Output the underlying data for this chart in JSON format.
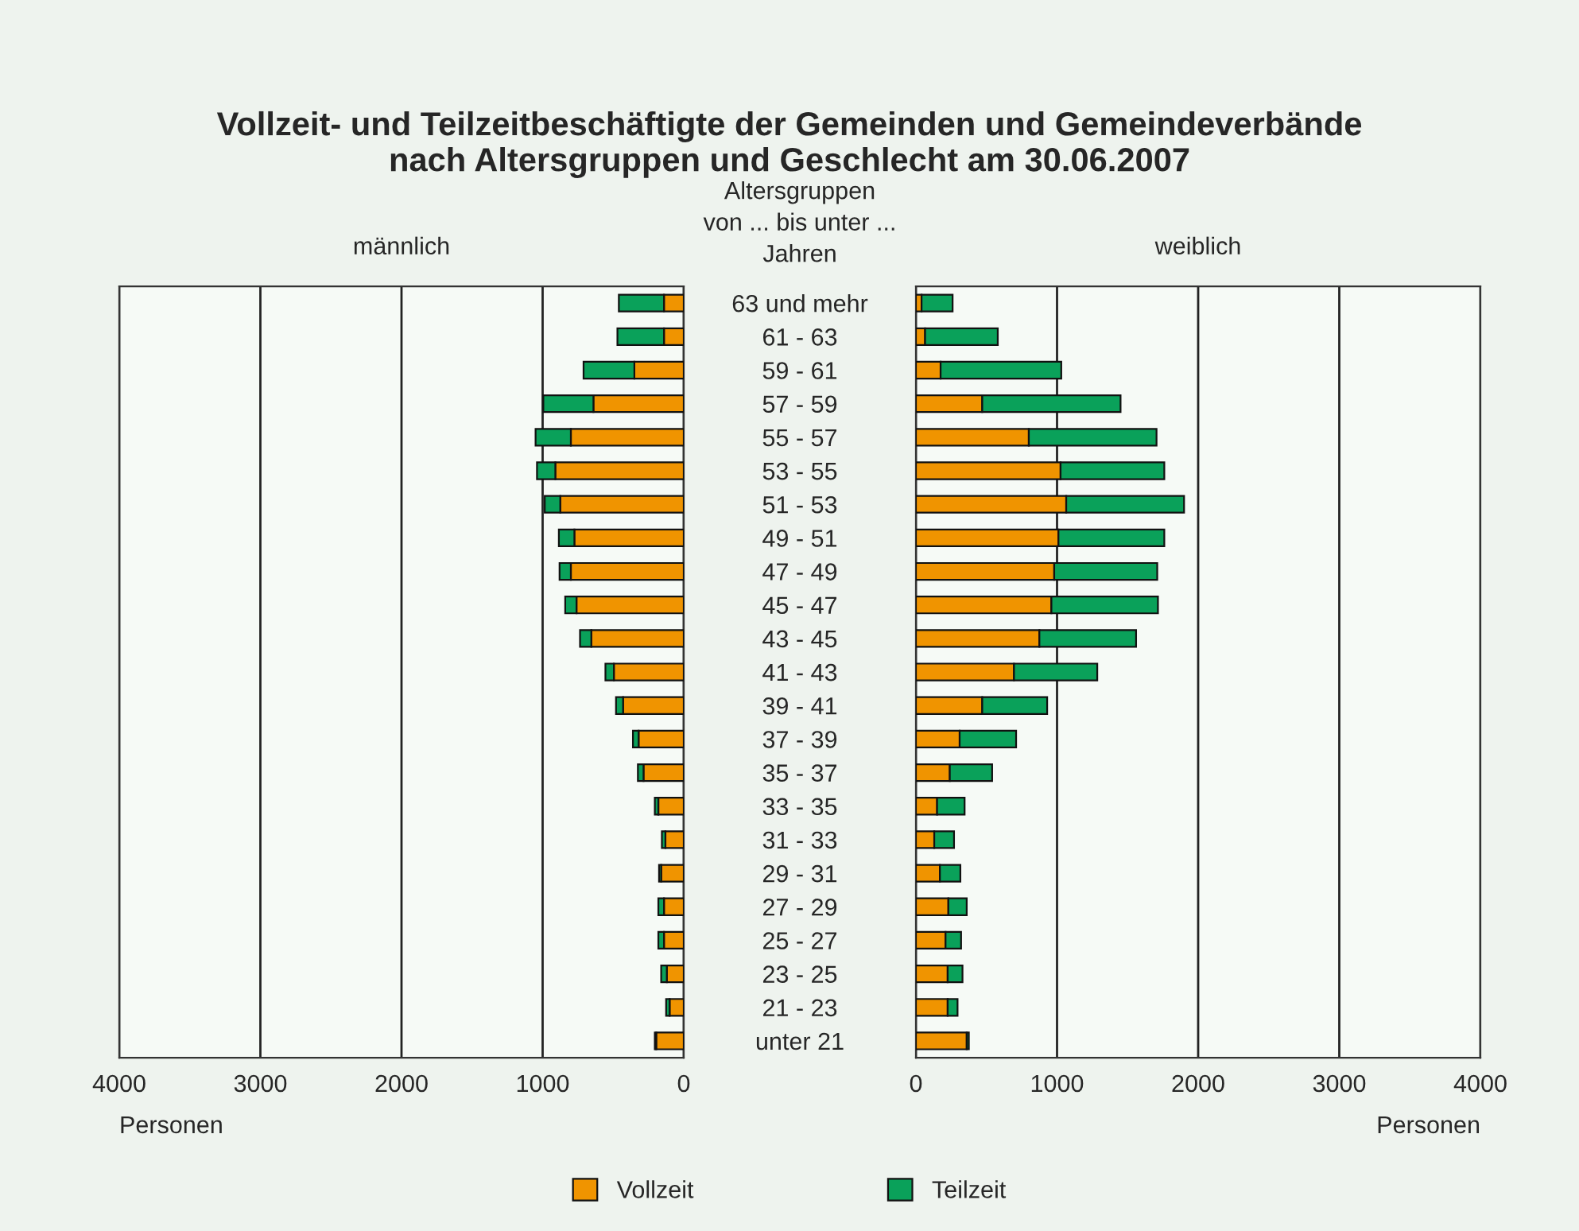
{
  "chart_data": [
    {
      "type": "bar",
      "orientation": "horizontal",
      "stacked": true,
      "title": "Vollzeit- und Teilzeitbeschäftigte der Gemeinden und Gemeindeverbände\nnach Altersgruppen und Geschlecht am 30.06.2007",
      "subtitle": "männlich",
      "xlabel": "Personen",
      "annotations": [
        "Altersgruppen\nvon ... bis unter ...\nJahren"
      ],
      "categories": [
        "63 und mehr",
        "61 - 63",
        "59 - 61",
        "57 - 59",
        "55 - 57",
        "53 - 55",
        "51 - 53",
        "49 - 51",
        "47 - 49",
        "45 - 47",
        "43 - 45",
        "41 - 43",
        "39 - 41",
        "37 - 39",
        "35 - 37",
        "33 - 35",
        "31 - 33",
        "29 - 31",
        "27 - 29",
        "25 - 27",
        "23 - 25",
        "21 - 23",
        "unter 21"
      ],
      "series": [
        {
          "name": "Vollzeit",
          "color": "#f09400",
          "values": [
            140,
            140,
            350,
            640,
            800,
            910,
            875,
            775,
            800,
            760,
            655,
            495,
            430,
            320,
            285,
            180,
            130,
            160,
            140,
            140,
            120,
            100,
            195
          ]
        },
        {
          "name": "Teilzeit",
          "color": "#0aa15a",
          "values": [
            320,
            330,
            360,
            355,
            250,
            130,
            110,
            110,
            80,
            80,
            80,
            60,
            50,
            40,
            40,
            25,
            25,
            15,
            40,
            40,
            40,
            25,
            10
          ]
        }
      ],
      "xlim": [
        4000,
        0
      ],
      "xticks": [
        0,
        1000,
        2000,
        3000,
        4000
      ],
      "grid": "x",
      "legend": "bottom"
    },
    {
      "type": "bar",
      "orientation": "horizontal",
      "stacked": true,
      "subtitle": "weiblich",
      "xlabel": "Personen",
      "categories": [
        null,
        null,
        null,
        null,
        null,
        null,
        null,
        null,
        null,
        null,
        null,
        null,
        null,
        null,
        null,
        null,
        null,
        null,
        null,
        null,
        null,
        null,
        null
      ],
      "series": [
        {
          "color": "#f09400",
          "values": [
            40,
            65,
            175,
            470,
            800,
            1025,
            1065,
            1010,
            980,
            960,
            875,
            695,
            470,
            310,
            240,
            150,
            130,
            170,
            230,
            210,
            225,
            225,
            360
          ]
        },
        {
          "color": "#0aa15a",
          "values": [
            220,
            515,
            855,
            980,
            905,
            735,
            835,
            750,
            730,
            755,
            685,
            590,
            460,
            400,
            300,
            195,
            140,
            145,
            130,
            110,
            105,
            70,
            15
          ]
        }
      ],
      "xlim": [
        0,
        4000
      ],
      "xticks": [
        0,
        1000,
        2000,
        3000,
        4000
      ],
      "grid": "x",
      "tick_labels": "x"
    }
  ]
}
